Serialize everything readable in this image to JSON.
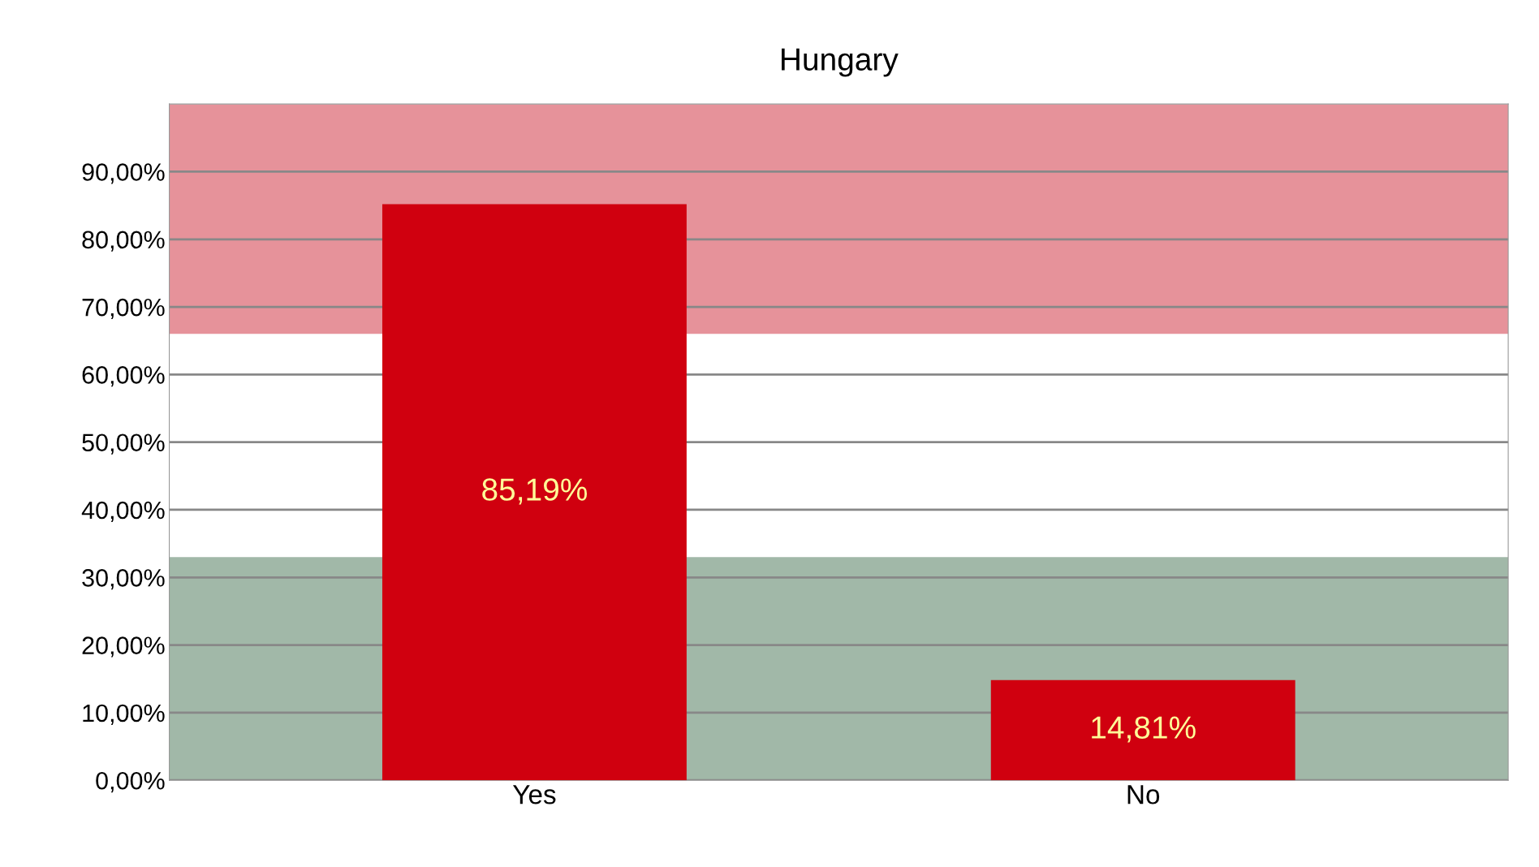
{
  "chart_data": {
    "type": "bar",
    "title": "Hungary",
    "categories": [
      "Yes",
      "No"
    ],
    "values": [
      85.19,
      14.81
    ],
    "value_labels": [
      "85,19%",
      "14,81%"
    ],
    "color": "#d0000f",
    "ylim": [
      0,
      100
    ],
    "yticks": [
      {
        "value": 0,
        "label": "0,00%"
      },
      {
        "value": 10,
        "label": "10,00%"
      },
      {
        "value": 20,
        "label": "20,00%"
      },
      {
        "value": 30,
        "label": "30,00%"
      },
      {
        "value": 40,
        "label": "40,00%"
      },
      {
        "value": 50,
        "label": "50,00%"
      },
      {
        "value": 60,
        "label": "60,00%"
      },
      {
        "value": 70,
        "label": "70,00%"
      },
      {
        "value": 80,
        "label": "80,00%"
      },
      {
        "value": 90,
        "label": "90,00%"
      }
    ],
    "grid": "y",
    "legend": false
  }
}
